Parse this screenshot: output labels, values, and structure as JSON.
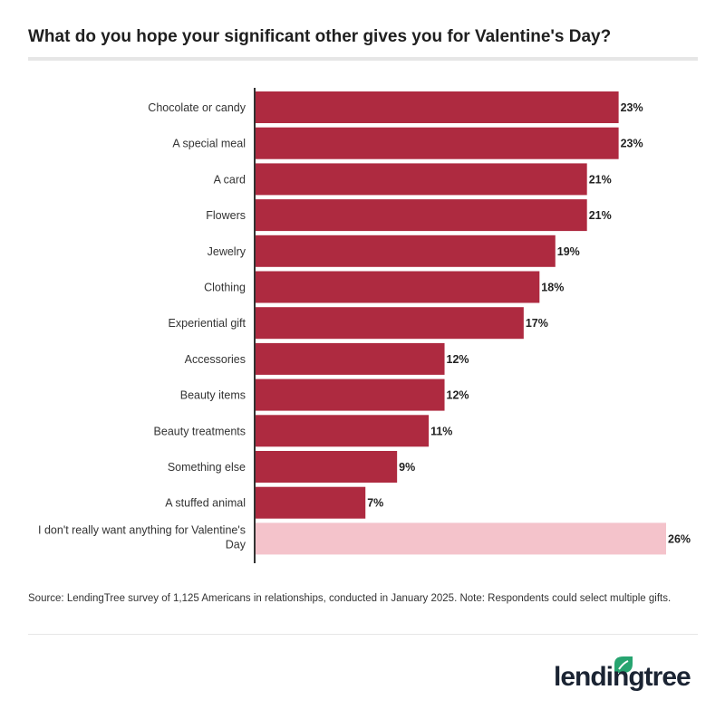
{
  "title": "What do you hope your significant other gives you for Valentine's Day?",
  "source": "Source: LendingTree survey of 1,125 Americans in relationships, conducted in January 2025. Note: Respondents could select multiple gifts.",
  "logo": {
    "text": "lendingtree",
    "leaf_color": "#27a470"
  },
  "colors": {
    "primary": "#ae2a40",
    "highlight": "#f4c3cb"
  },
  "chart_data": {
    "type": "bar",
    "orientation": "horizontal",
    "title": "What do you hope your significant other gives you for Valentine's Day?",
    "categories": [
      "Chocolate or candy",
      "A special meal",
      "A card",
      "Flowers",
      "Jewelry",
      "Clothing",
      "Experiential gift",
      "Accessories",
      "Beauty items",
      "Beauty treatments",
      "Something else",
      "A stuffed animal",
      "I don't really want anything for Valentine's Day"
    ],
    "values": [
      23,
      23,
      21,
      21,
      19,
      18,
      17,
      12,
      12,
      11,
      9,
      7,
      26
    ],
    "labels": [
      "23%",
      "23%",
      "21%",
      "21%",
      "19%",
      "18%",
      "17%",
      "12%",
      "12%",
      "11%",
      "9%",
      "7%",
      "26%"
    ],
    "unit": "%",
    "xlim": [
      0,
      26
    ],
    "grid": false,
    "legend": "none"
  }
}
